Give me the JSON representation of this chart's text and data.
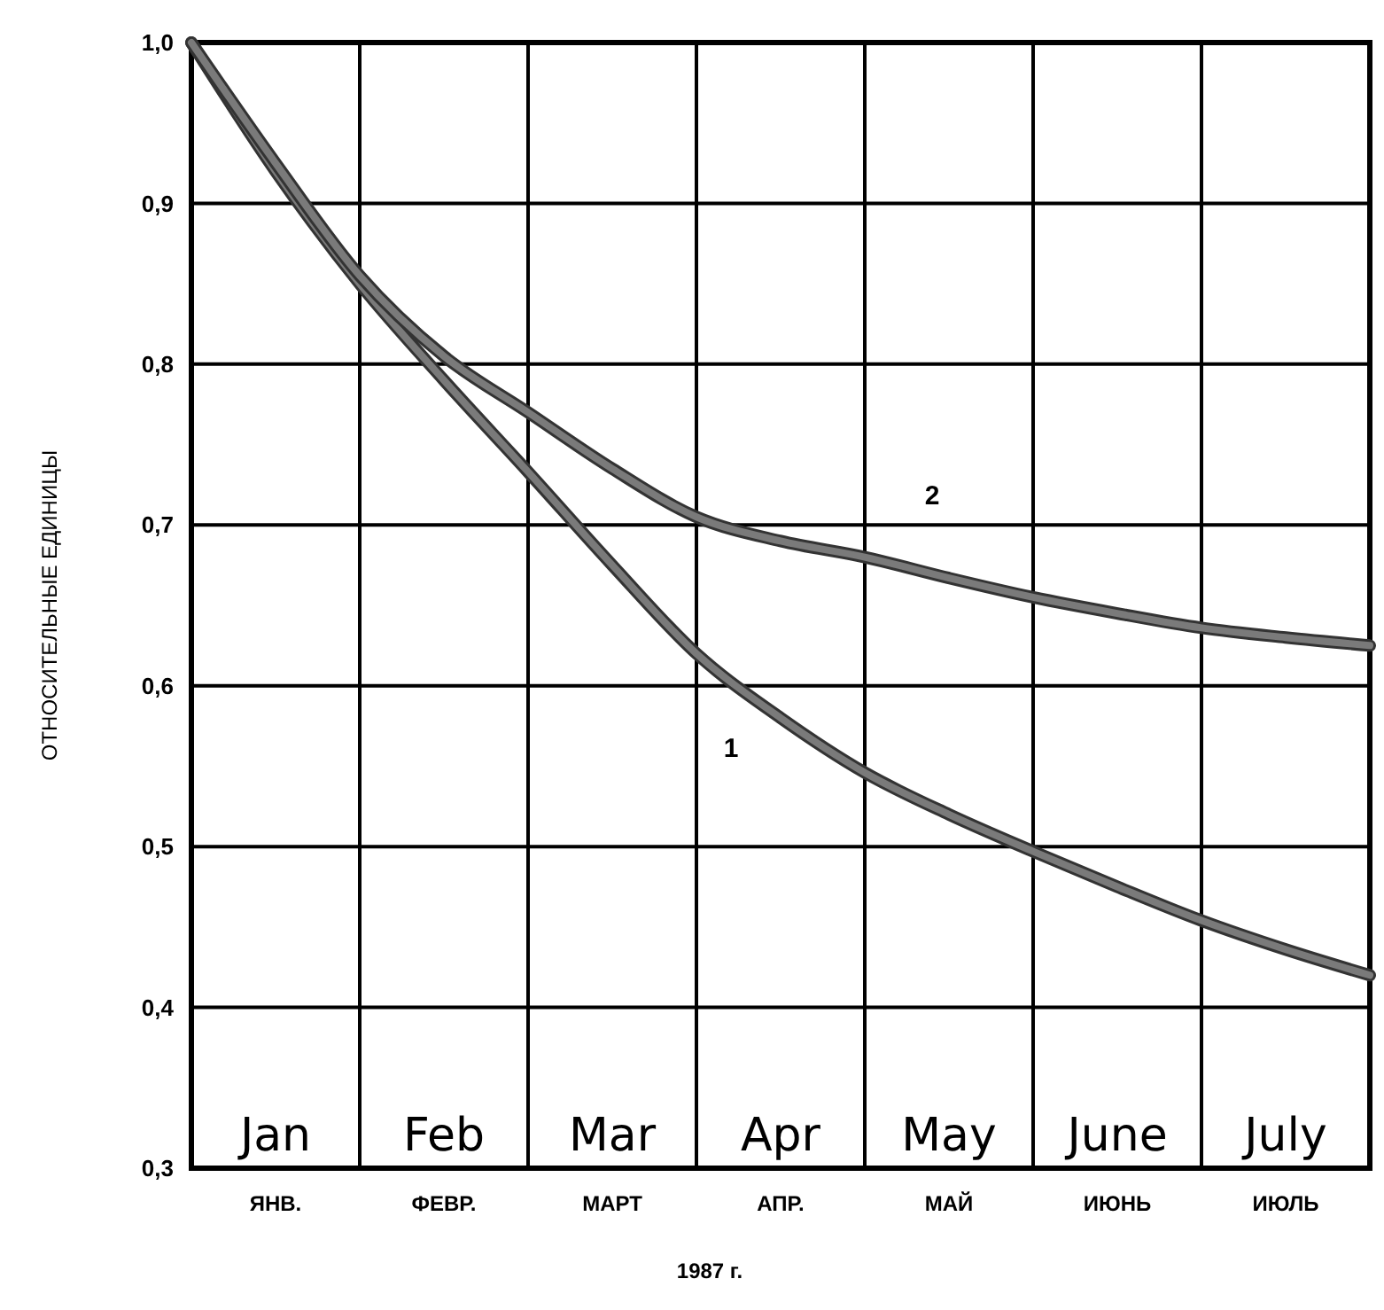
{
  "chart_data": {
    "type": "line",
    "xlabel": "1987 г.",
    "ylabel": "ОТНОСИТЕЛЬНЫЕ ЕДИНИЦЫ",
    "categories": [
      null,
      "ЯНВ.",
      null,
      "ФЕВР.",
      null,
      "МАРТ",
      null,
      "АПР.",
      null,
      "МАЙ",
      null,
      "ИЮНЬ",
      null,
      "ИЮЛЬ",
      null
    ],
    "series": [
      {
        "name": "1",
        "color": "#7a7a7a",
        "values": [
          1.0,
          0.92,
          0.85,
          0.79,
          0.733,
          0.675,
          0.62,
          0.58,
          0.546,
          0.52,
          0.497,
          0.475,
          0.454,
          0.436,
          0.42
        ]
      },
      {
        "name": "2",
        "color": "#7a7a7a",
        "values": [
          1.0,
          0.925,
          0.855,
          0.805,
          0.77,
          0.735,
          0.705,
          0.69,
          0.68,
          0.667,
          0.655,
          0.645,
          0.636,
          0.63,
          0.625
        ]
      }
    ],
    "ylim": [
      0.3,
      1.0
    ],
    "yticks": [
      {
        "value": 0.3,
        "label": "0,3"
      },
      {
        "value": 0.4,
        "label": "0,4"
      },
      {
        "value": 0.5,
        "label": "0,5"
      },
      {
        "value": 0.6,
        "label": "0,6"
      },
      {
        "value": 0.7,
        "label": "0,7"
      },
      {
        "value": 0.8,
        "label": "0,8"
      },
      {
        "value": 0.9,
        "label": "0,9"
      },
      {
        "value": 1.0,
        "label": "1,0"
      }
    ],
    "grid": true,
    "marker": "none",
    "line_style": "solid",
    "annotations": [
      "Jan",
      "Feb",
      "Mar",
      "Apr",
      "May",
      "June",
      "July"
    ]
  }
}
